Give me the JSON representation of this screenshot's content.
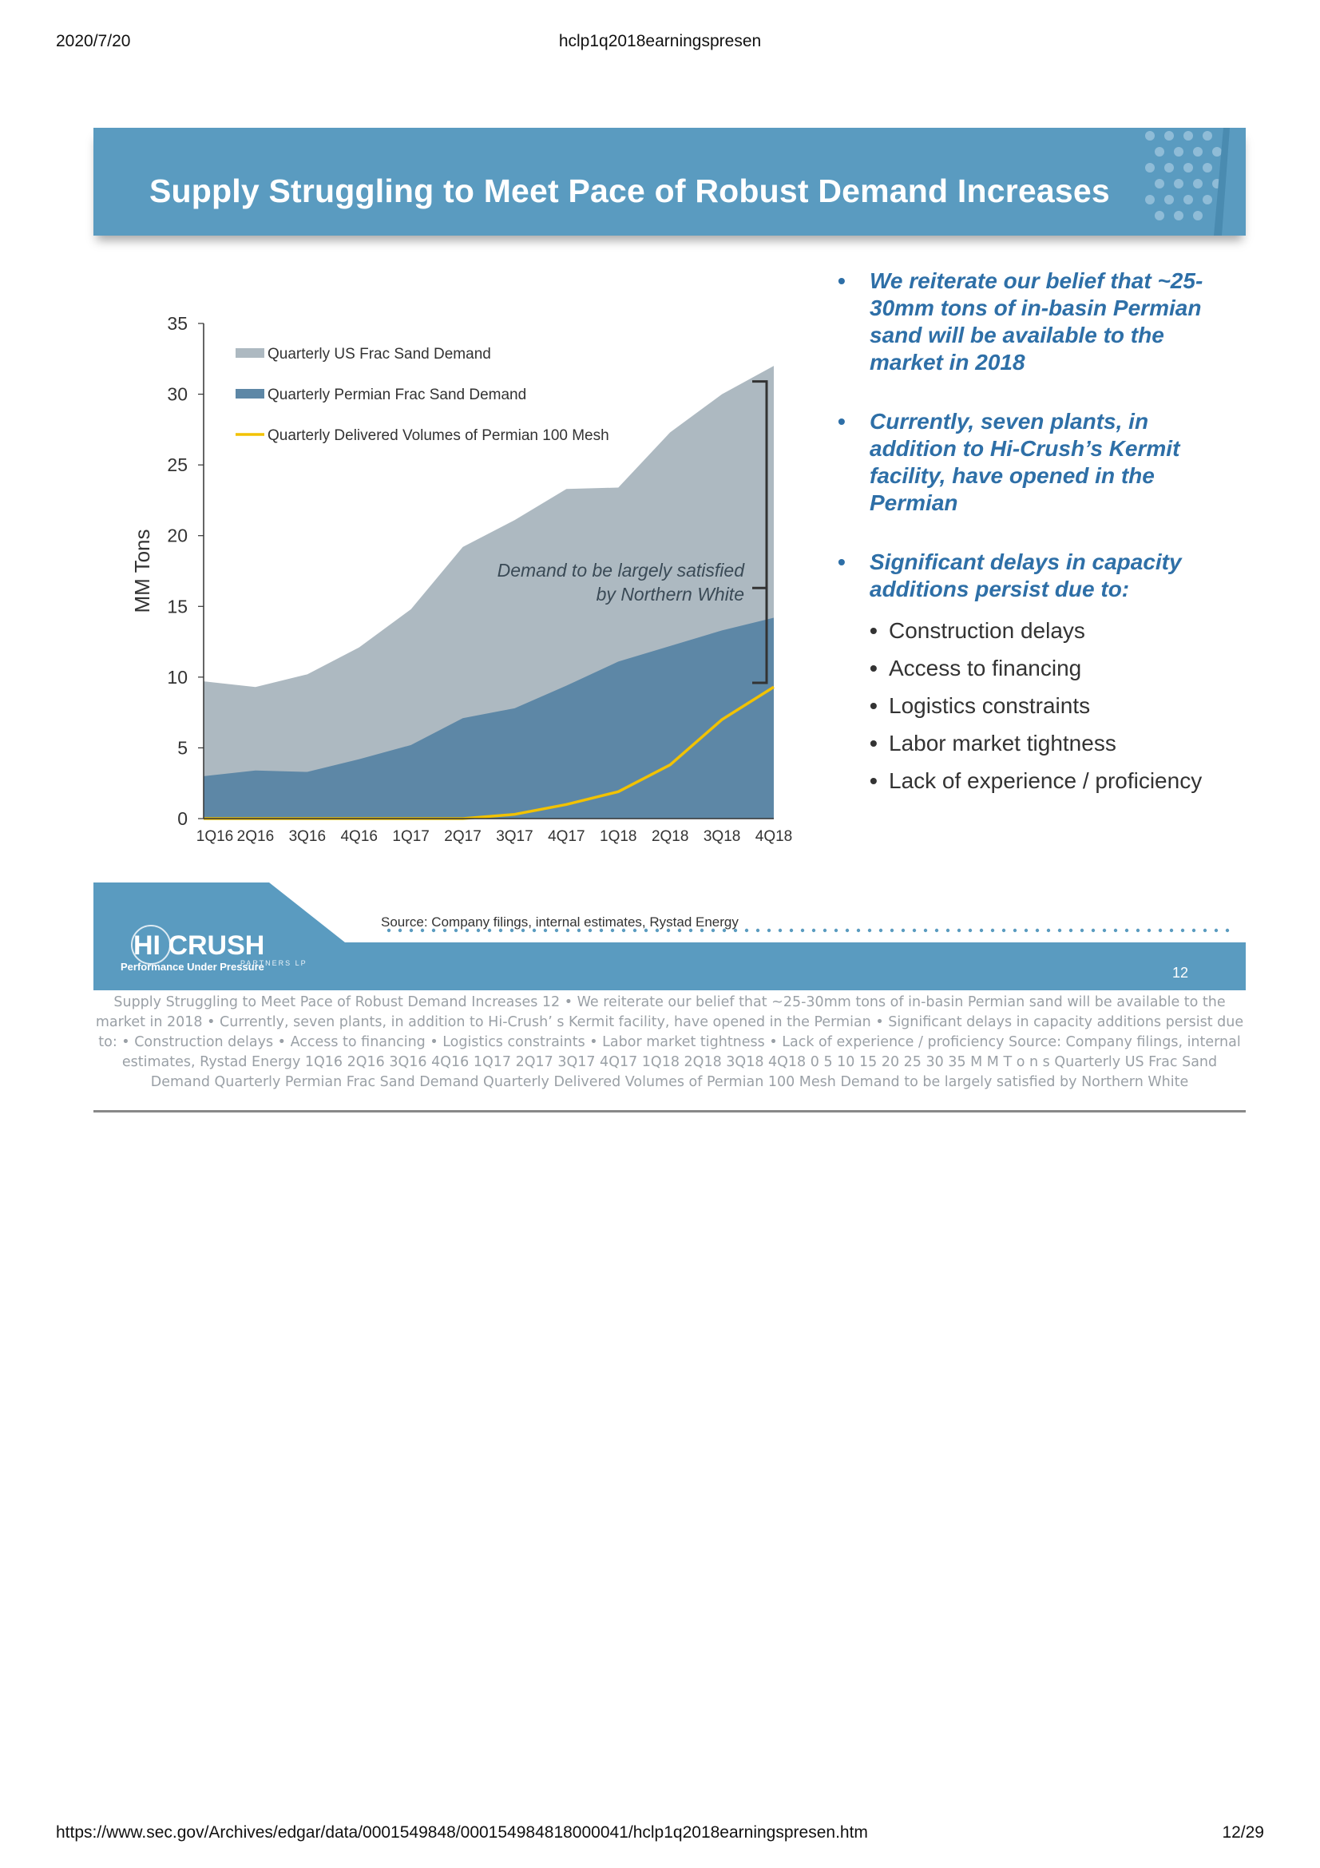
{
  "print_header": {
    "date": "2020/7/20",
    "doc_name": "hclp1q2018earningspresen"
  },
  "print_footer": {
    "url": "https://www.sec.gov/Archives/edgar/data/0001549848/000154984818000041/hclp1q2018earningspresen.htm",
    "page": "12/29"
  },
  "slide": {
    "title": "Supply Struggling to Meet Pace of Robust Demand Increases",
    "bullets": [
      {
        "text": "We reiterate our belief that ~25-30mm tons of in-basin Permian sand will be available to the market in 2018"
      },
      {
        "text": "Currently, seven plants, in addition to Hi-Crush’s Kermit facility, have opened in the Permian"
      },
      {
        "text": "Significant delays in capacity additions persist due to:"
      }
    ],
    "sub_bullets": [
      "Construction delays",
      "Access to financing",
      "Logistics constraints",
      "Labor market tightness",
      "Lack of experience / proficiency"
    ],
    "source": "Source: Company filings, internal estimates, Rystad Energy",
    "page_number": "12",
    "logo_text": "HI CRUSH",
    "logo_sub": "PARTNERS LP",
    "tagline": "Performance Under Pressure",
    "colors": {
      "title_bar": "#5a9bc0",
      "us_demand": "#adb9c1",
      "permian_demand": "#5d87a6",
      "delivered": "#f2c200",
      "bullet_text": "#2e6fa7"
    }
  },
  "chart_data": {
    "type": "area",
    "ylabel": "MM Tons",
    "ylim": [
      0,
      35
    ],
    "yticks": [
      0,
      5,
      10,
      15,
      20,
      25,
      30,
      35
    ],
    "categories": [
      "1Q16",
      "2Q16",
      "3Q16",
      "4Q16",
      "1Q17",
      "2Q17",
      "3Q17",
      "4Q17",
      "1Q18",
      "2Q18",
      "3Q18",
      "4Q18"
    ],
    "series": [
      {
        "name": "Quarterly US Frac Sand Demand",
        "values": [
          9.7,
          9.3,
          10.2,
          12.1,
          14.8,
          19.2,
          21.1,
          23.3,
          23.4,
          27.3,
          30.0,
          32.0
        ]
      },
      {
        "name": "Quarterly Permian Frac Sand Demand",
        "values": [
          3.0,
          3.4,
          3.3,
          4.2,
          5.2,
          7.1,
          7.8,
          9.4,
          11.1,
          12.2,
          13.3,
          14.2
        ]
      },
      {
        "name": "Quarterly Delivered Volumes of Permian 100 Mesh",
        "values": [
          0,
          0,
          0,
          0,
          0,
          0,
          0.3,
          1.0,
          1.9,
          3.8,
          7.0,
          9.3
        ]
      }
    ],
    "legend_position": "top-left",
    "annotation": {
      "line1": "Demand to be largely satisfied",
      "line2": "by Northern White"
    }
  },
  "extracted_text": "Supply Struggling to Meet Pace of Robust Demand Increases 12 • We reiterate our belief that ~25-30mm tons of in-basin Permian sand will be available to the market in 2018 • Currently, seven plants, in addition to Hi-Crush’ s Kermit facility, have opened in the Permian • Significant delays in capacity additions persist due to: • Construction delays • Access to financing • Logistics constraints • Labor market tightness • Lack of experience / proficiency Source: Company filings, internal estimates, Rystad Energy 1Q16 2Q16 3Q16 4Q16 1Q17 2Q17 3Q17 4Q17 1Q18 2Q18 3Q18 4Q18 0 5 10 15 20 25 30 35 M M T o n s Quarterly US Frac Sand Demand Quarterly Permian Frac Sand Demand Quarterly Delivered Volumes of Permian 100 Mesh Demand to be largely satisfied by Northern White"
}
